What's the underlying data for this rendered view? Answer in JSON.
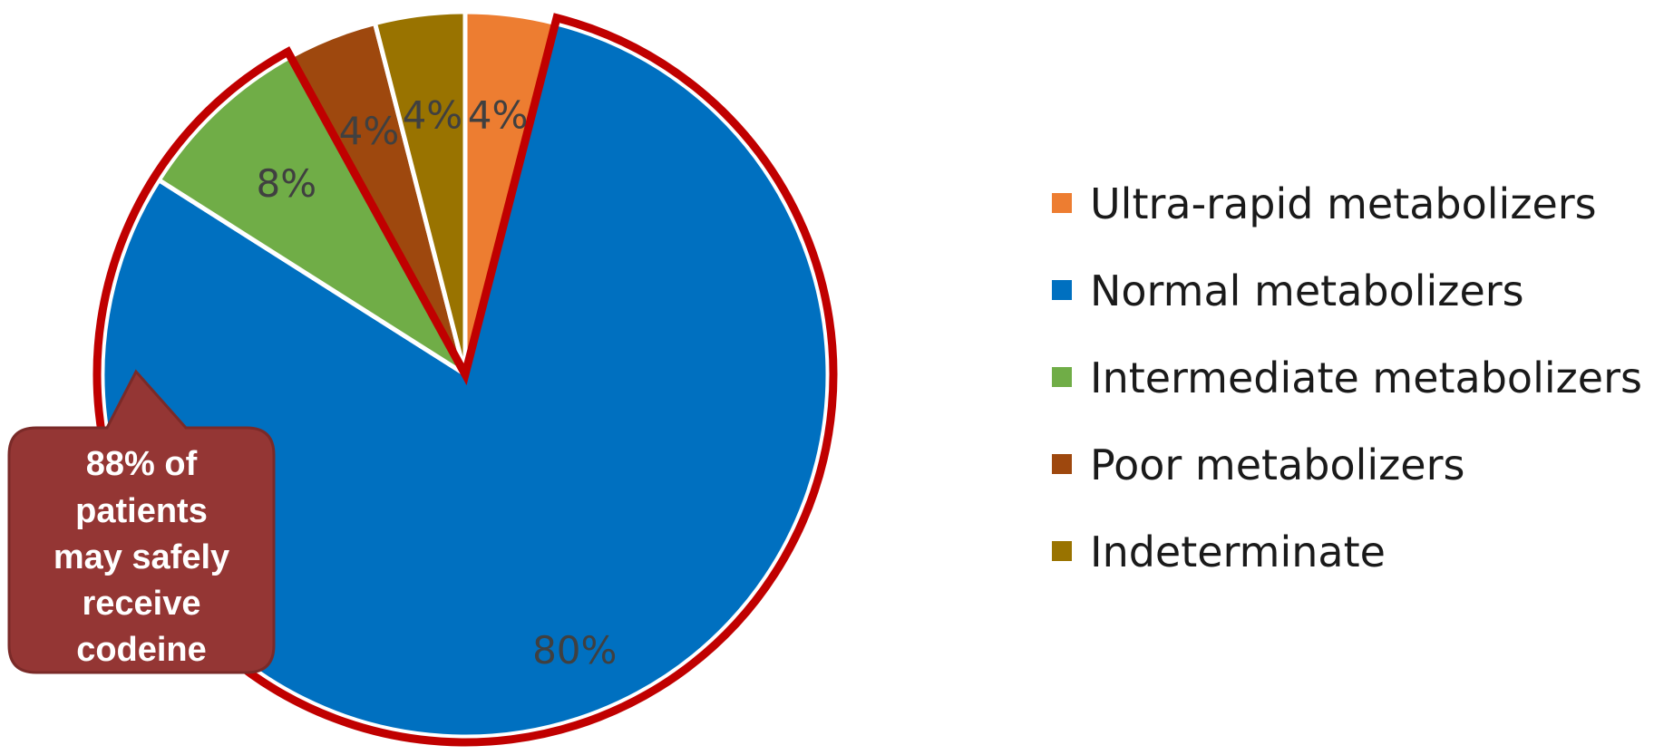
{
  "chart_data": {
    "type": "pie",
    "start_angle_deg": 0,
    "direction": "clockwise",
    "categories": [
      "Ultra-rapid metabolizers",
      "Normal metabolizers",
      "Intermediate metabolizers",
      "Poor metabolizers",
      "Indeterminate"
    ],
    "values": [
      4,
      80,
      8,
      4,
      4
    ],
    "labels": [
      "4%",
      "80%",
      "8%",
      "4%",
      "4%"
    ],
    "colors": [
      "#ED7D31",
      "#0070C0",
      "#70AD47",
      "#9E480E",
      "#997300"
    ],
    "highlight_categories": [
      "Normal metabolizers",
      "Intermediate metabolizers"
    ],
    "highlight_color": "#C00000",
    "legend_position": "right",
    "title": "",
    "annotation": {
      "lines": [
        "88% of",
        "patients",
        "may safely",
        "receive",
        "codeine"
      ],
      "color": "#943634"
    }
  }
}
